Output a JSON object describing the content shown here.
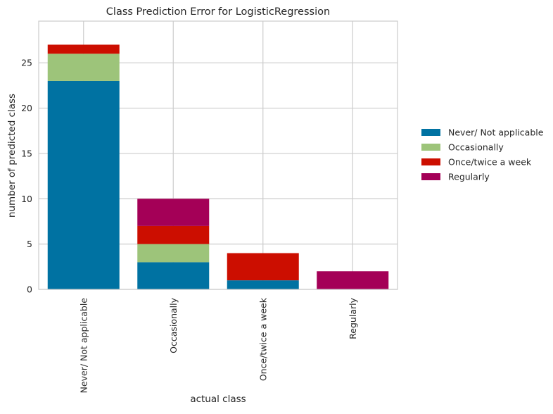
{
  "chart_data": {
    "type": "bar",
    "stacked": true,
    "title": "Class Prediction Error for LogisticRegression",
    "xlabel": "actual class",
    "ylabel": "number of predicted class",
    "categories": [
      "Never/ Not applicable",
      "Occasionally",
      "Once/twice a week",
      "Regularly"
    ],
    "series": [
      {
        "name": "Never/ Not applicable",
        "color": "#0072a2",
        "values": [
          23,
          3,
          1,
          0
        ]
      },
      {
        "name": "Occasionally",
        "color": "#9dc47a",
        "values": [
          3,
          2,
          0,
          0
        ]
      },
      {
        "name": "Once/twice a week",
        "color": "#cc0e00",
        "values": [
          1,
          2,
          3,
          0
        ]
      },
      {
        "name": "Regularly",
        "color": "#a40057",
        "values": [
          0,
          3,
          0,
          2
        ]
      }
    ],
    "yticks": [
      0,
      5,
      10,
      15,
      20,
      25
    ],
    "ylim": [
      0,
      29.6
    ],
    "grid": true,
    "legend_position": "right"
  }
}
